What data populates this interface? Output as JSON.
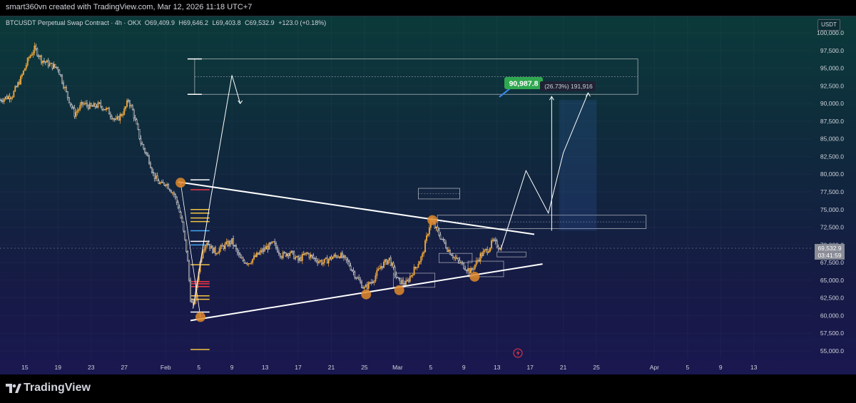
{
  "header": {
    "author_line": "smart360vn created with TradingView.com, Mar 12, 2026 11:18 UTC+7"
  },
  "legend": {
    "symbol": "BTCUSDT Perpetual Swap Contract · 4h · OKX",
    "open_key": "O",
    "open": "69,409.9",
    "high_key": "H",
    "high": "69,646.2",
    "low_key": "L",
    "low": "69,403.8",
    "close_key": "C",
    "close": "69,532.9",
    "change": "+123.0 (+0.18%)"
  },
  "currency_button": "USDT",
  "last_price": {
    "price": "69,532.9",
    "countdown": "03:41:59"
  },
  "target_label": {
    "value": "90,987.8",
    "measure_text": "(26.73%) 191,916"
  },
  "footer": {
    "brand": "TradingView"
  },
  "colors": {
    "up": "#e8a33b",
    "down": "#d1d4dc",
    "pivot": "#e08a2b",
    "target_badge": "#2fa84f",
    "line": "#ffffff"
  },
  "chart_data": {
    "type": "candlestick",
    "timeframe": "4h",
    "ylim": [
      53500,
      101500
    ],
    "y_ticks": [
      "100,000.0",
      "97,500.0",
      "95,000.0",
      "92,500.0",
      "90,000.0",
      "87,500.0",
      "85,000.0",
      "82,500.0",
      "80,000.0",
      "77,500.0",
      "75,000.0",
      "72,500.0",
      "70,000.0",
      "67,500.0",
      "65,000.0",
      "62,500.0",
      "60,000.0",
      "57,500.0",
      "55,000.0"
    ],
    "y_tick_values": [
      100000,
      97500,
      95000,
      92500,
      90000,
      87500,
      85000,
      82500,
      80000,
      77500,
      75000,
      72500,
      70000,
      67500,
      65000,
      62500,
      60000,
      57500,
      55000
    ],
    "x_ticks": [
      "15",
      "19",
      "23",
      "27",
      "Feb",
      "5",
      "9",
      "13",
      "17",
      "21",
      "25",
      "Mar",
      "5",
      "9",
      "13",
      "17",
      "21",
      "25",
      "Apr",
      "5",
      "9",
      "13"
    ],
    "x_tick_days": [
      -17,
      -13,
      -9,
      -5,
      0,
      4,
      8,
      12,
      16,
      20,
      24,
      28,
      32,
      36,
      40,
      44,
      48,
      52,
      59,
      63,
      67,
      71
    ],
    "x_range_days": [
      -20,
      78
    ],
    "price_path": [
      [
        -20,
        90500
      ],
      [
        -18.5,
        91200
      ],
      [
        -17.5,
        93500
      ],
      [
        -16.5,
        96500
      ],
      [
        -15.8,
        97800
      ],
      [
        -15,
        96200
      ],
      [
        -14,
        95500
      ],
      [
        -13,
        95000
      ],
      [
        -12,
        91500
      ],
      [
        -11,
        88500
      ],
      [
        -10,
        90000
      ],
      [
        -9,
        89500
      ],
      [
        -8,
        89800
      ],
      [
        -7,
        89000
      ],
      [
        -6,
        87500
      ],
      [
        -5,
        89000
      ],
      [
        -4.5,
        90500
      ],
      [
        -4,
        89000
      ],
      [
        -3,
        84500
      ],
      [
        -2,
        82000
      ],
      [
        -1.5,
        80000
      ],
      [
        -1,
        79000
      ],
      [
        -0.5,
        78500
      ],
      [
        0,
        78800
      ],
      [
        0.5,
        78000
      ],
      [
        1,
        77200
      ],
      [
        1.5,
        75500
      ],
      [
        2,
        73000
      ],
      [
        2.6,
        68500
      ],
      [
        3,
        62500
      ],
      [
        3.3,
        61000
      ],
      [
        3.6,
        63000
      ],
      [
        4,
        66500
      ],
      [
        4.5,
        69500
      ],
      [
        5,
        70500
      ],
      [
        5.5,
        69500
      ],
      [
        6,
        69000
      ],
      [
        7,
        69800
      ],
      [
        8,
        70500
      ],
      [
        9,
        68000
      ],
      [
        10,
        67500
      ],
      [
        11,
        68500
      ],
      [
        12,
        69500
      ],
      [
        13,
        70200
      ],
      [
        14,
        68500
      ],
      [
        15,
        69000
      ],
      [
        16,
        67800
      ],
      [
        17,
        68800
      ],
      [
        18,
        68000
      ],
      [
        19,
        67500
      ],
      [
        20,
        68200
      ],
      [
        21,
        68600
      ],
      [
        22,
        67500
      ],
      [
        23,
        65500
      ],
      [
        24,
        63800
      ],
      [
        25,
        65000
      ],
      [
        26,
        67000
      ],
      [
        27,
        68000
      ],
      [
        27.5,
        66500
      ],
      [
        28,
        65000
      ],
      [
        29,
        64500
      ],
      [
        30,
        66500
      ],
      [
        31,
        68500
      ],
      [
        31.5,
        71000
      ],
      [
        32,
        73500
      ],
      [
        32.5,
        72500
      ],
      [
        33,
        71500
      ],
      [
        34,
        69500
      ],
      [
        35,
        68000
      ],
      [
        36,
        67000
      ],
      [
        36.8,
        66200
      ],
      [
        37.5,
        67500
      ],
      [
        38,
        68500
      ],
      [
        39,
        69500
      ],
      [
        39.5,
        70500
      ],
      [
        40,
        70000
      ],
      [
        40.5,
        69500
      ]
    ],
    "projection": [
      [
        40.5,
        69500
      ],
      [
        43.5,
        80500
      ],
      [
        46.2,
        74500
      ],
      [
        48,
        83000
      ],
      [
        51,
        91500
      ]
    ],
    "projection_low": [
      [
        3.3,
        61000
      ],
      [
        5.5,
        77000
      ],
      [
        8,
        94000
      ],
      [
        9,
        90000
      ]
    ],
    "pivots": [
      [
        1.8,
        78800
      ],
      [
        4.2,
        59800
      ],
      [
        24.2,
        63000
      ],
      [
        28.2,
        63600
      ],
      [
        32.2,
        73500
      ],
      [
        37.3,
        65500
      ]
    ],
    "trendlines": [
      {
        "from": [
          1.5,
          78900
        ],
        "to": [
          44.5,
          71500
        ]
      },
      {
        "from": [
          3.0,
          59300
        ],
        "to": [
          45.5,
          67300
        ]
      }
    ],
    "levels_left": [
      {
        "price": 79200,
        "color": "#ffffff"
      },
      {
        "price": 77800,
        "color": "#f23645"
      },
      {
        "price": 75000,
        "color": "#f5c242"
      },
      {
        "price": 74500,
        "color": "#f5c242"
      },
      {
        "price": 73800,
        "color": "#f5c242"
      },
      {
        "price": 73300,
        "color": "#f5c242"
      },
      {
        "price": 72000,
        "color": "#42a5f5"
      },
      {
        "price": 70500,
        "color": "#ffffff"
      },
      {
        "price": 70000,
        "color": "#42a5f5"
      },
      {
        "price": 67200,
        "color": "#f5c242"
      },
      {
        "price": 64800,
        "color": "#f23645"
      },
      {
        "price": 64500,
        "color": "#f23645"
      },
      {
        "price": 64100,
        "color": "#f23645"
      },
      {
        "price": 62800,
        "color": "#f5c242"
      },
      {
        "price": 62300,
        "color": "#f5c242"
      },
      {
        "price": 60500,
        "color": "#ffffff"
      },
      {
        "price": 55200,
        "color": "#f5c242"
      }
    ],
    "zones": [
      {
        "from_day": 3.5,
        "to_day": 57,
        "low": 91300,
        "high": 96300
      },
      {
        "from_day": 30.5,
        "to_day": 35.5,
        "low": 76500,
        "high": 78000
      },
      {
        "from_day": 32.8,
        "to_day": 58,
        "low": 72300,
        "high": 74200
      },
      {
        "from_day": 47.5,
        "to_day": 52,
        "low": 72000,
        "high": 90500
      }
    ],
    "small_boxes": [
      {
        "from_day": 27.5,
        "to_day": 32.5,
        "low": 64000,
        "high": 66000
      },
      {
        "from_day": 36.5,
        "to_day": 40.8,
        "low": 65500,
        "high": 67700
      },
      {
        "from_day": 33,
        "to_day": 37,
        "low": 67500,
        "high": 68800
      },
      {
        "from_day": 40,
        "to_day": 43.5,
        "low": 68300,
        "high": 69000
      }
    ]
  }
}
